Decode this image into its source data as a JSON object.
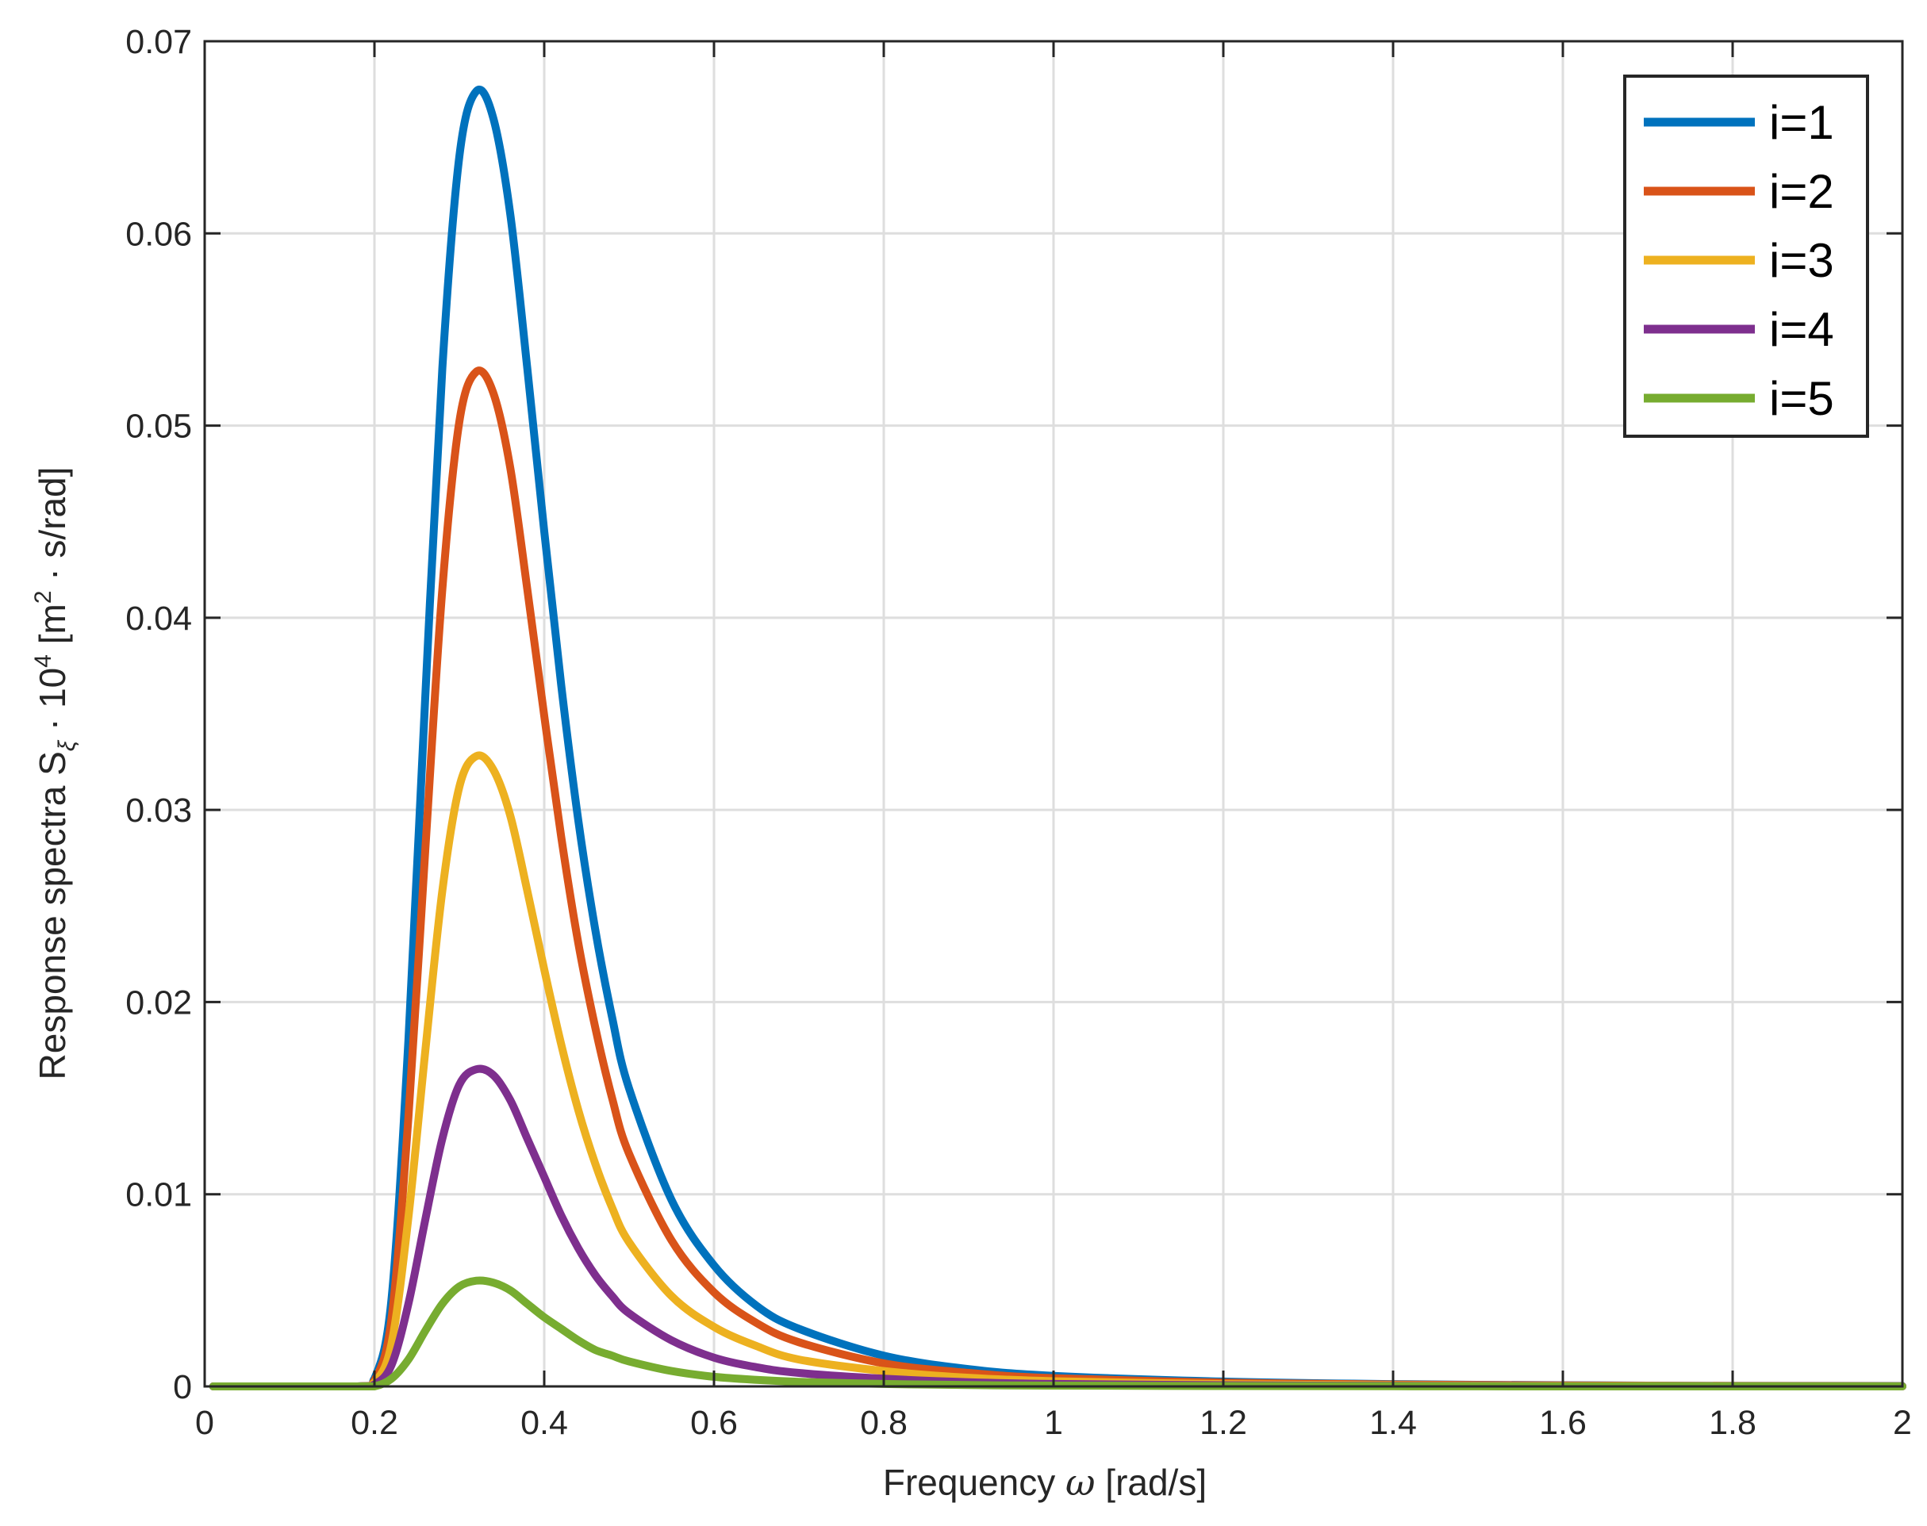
{
  "chart_data": {
    "type": "line",
    "title": "",
    "xlabel": {
      "prefix": "Frequency ",
      "symbol": "ω",
      "suffix": " [rad/s]"
    },
    "ylabel": {
      "prefix": "Response spectra S",
      "subscript": "ξ",
      "mid": " · 10",
      "superscript": "4",
      "unit_a": " [m",
      "unit_sup": "2",
      "unit_b": " · s/rad]"
    },
    "xlim": [
      0,
      2
    ],
    "ylim": [
      0,
      0.07
    ],
    "xticks": [
      0,
      0.2,
      0.4,
      0.6,
      0.8,
      1,
      1.2,
      1.4,
      1.6,
      1.8,
      2
    ],
    "xtick_labels": [
      "0",
      "0.2",
      "0.4",
      "0.6",
      "0.8",
      "1",
      "1.2",
      "1.4",
      "1.6",
      "1.8",
      "2"
    ],
    "yticks": [
      0,
      0.01,
      0.02,
      0.03,
      0.04,
      0.05,
      0.06,
      0.07
    ],
    "ytick_labels": [
      "0",
      "0.01",
      "0.02",
      "0.03",
      "0.04",
      "0.05",
      "0.06",
      "0.07"
    ],
    "grid": true,
    "legend_position": "top-right",
    "x": [
      0.01,
      0.18,
      0.2,
      0.22,
      0.24,
      0.26,
      0.28,
      0.3,
      0.32,
      0.34,
      0.36,
      0.38,
      0.4,
      0.42,
      0.44,
      0.46,
      0.48,
      0.5,
      0.55,
      0.6,
      0.65,
      0.7,
      0.8,
      0.9,
      1.0,
      1.2,
      1.4,
      1.6,
      1.8,
      2.0
    ],
    "series": [
      {
        "name": "i=1",
        "color": "#0072BD",
        "values": [
          0,
          0,
          0.0004,
          0.0045,
          0.018,
          0.036,
          0.053,
          0.064,
          0.0674,
          0.066,
          0.061,
          0.053,
          0.0445,
          0.0365,
          0.0295,
          0.0238,
          0.0192,
          0.0155,
          0.0097,
          0.0063,
          0.0042,
          0.003,
          0.0016,
          0.0009,
          0.00055,
          0.00025,
          0.00012,
          6e-05,
          3e-05,
          2e-05
        ]
      },
      {
        "name": "i=2",
        "color": "#D95319",
        "values": [
          0,
          0,
          0.0003,
          0.0035,
          0.014,
          0.028,
          0.0415,
          0.0502,
          0.0528,
          0.0517,
          0.0478,
          0.0415,
          0.0349,
          0.0286,
          0.0231,
          0.0187,
          0.015,
          0.0121,
          0.0076,
          0.0049,
          0.0033,
          0.0023,
          0.0012,
          0.0007,
          0.00043,
          0.0002,
          0.0001,
          5e-05,
          2e-05,
          1e-05
        ]
      },
      {
        "name": "i=3",
        "color": "#EDB120",
        "values": [
          0,
          0,
          0.0002,
          0.0022,
          0.0088,
          0.0175,
          0.0258,
          0.0312,
          0.0328,
          0.0321,
          0.0297,
          0.0258,
          0.0217,
          0.0178,
          0.0144,
          0.0116,
          0.0093,
          0.0075,
          0.0047,
          0.0031,
          0.0021,
          0.0014,
          0.0008,
          0.00045,
          0.00027,
          0.00012,
          6e-05,
          3e-05,
          1e-05,
          0
        ]
      },
      {
        "name": "i=4",
        "color": "#7E2F8E",
        "values": [
          0,
          0,
          0.0001,
          0.0011,
          0.0043,
          0.0087,
          0.0129,
          0.0157,
          0.0165,
          0.0162,
          0.0149,
          0.0129,
          0.0109,
          0.0089,
          0.0072,
          0.0058,
          0.0047,
          0.0038,
          0.0024,
          0.0015,
          0.001,
          0.0007,
          0.0004,
          0.00022,
          0.00013,
          6e-05,
          3e-05,
          1e-05,
          0,
          0
        ]
      },
      {
        "name": "i=5",
        "color": "#77AC30",
        "values": [
          0,
          0,
          0,
          0.0004,
          0.0014,
          0.0029,
          0.0043,
          0.0052,
          0.0055,
          0.0054,
          0.005,
          0.0043,
          0.0036,
          0.003,
          0.0024,
          0.0019,
          0.0016,
          0.0013,
          0.0008,
          0.0005,
          0.00034,
          0.00024,
          0.00013,
          7e-05,
          4e-05,
          2e-05,
          1e-05,
          0,
          0,
          0
        ]
      }
    ]
  }
}
